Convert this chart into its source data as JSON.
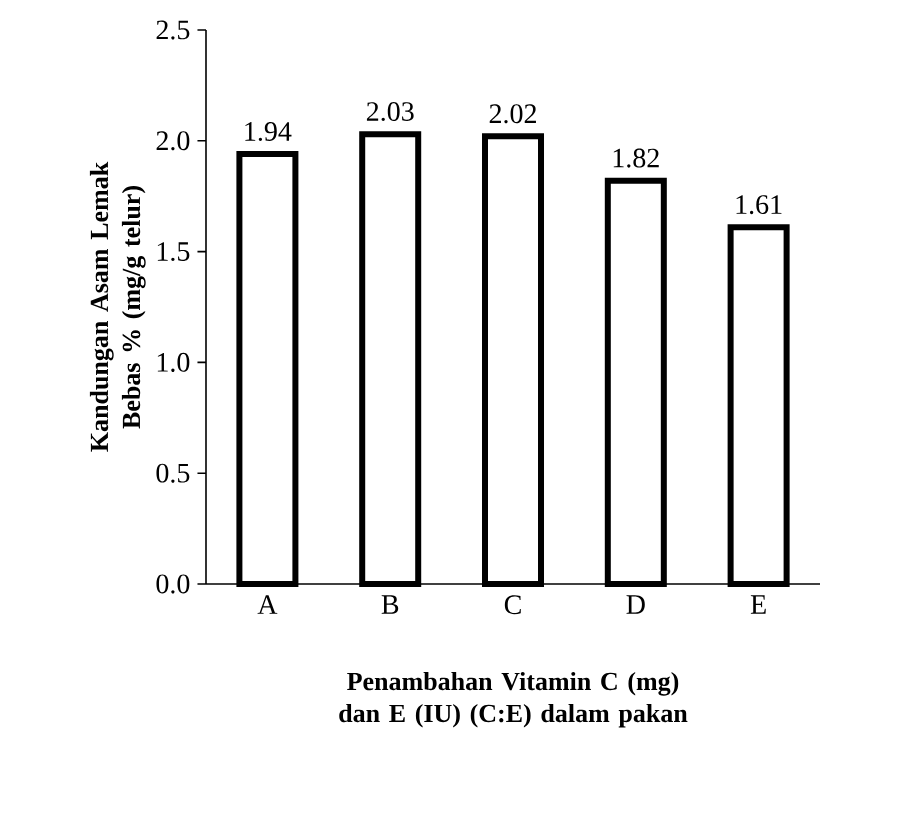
{
  "chart_data": {
    "type": "bar",
    "xlabel": "Penambahan Vitamin C (mg) dan E (IU) (C:E) dalam pakan",
    "ylabel": "Kandungan Asam Lemak Bebas % (mg/g telur)",
    "categories": [
      "A",
      "B",
      "C",
      "D",
      "E"
    ],
    "values": [
      1.94,
      2.03,
      2.02,
      1.82,
      1.61
    ],
    "color": "#ffffff",
    "ylim": [
      0,
      2.5
    ],
    "yticks": [
      {
        "value": 0,
        "label": "0.0"
      },
      0.5,
      {
        "value": 1,
        "label": "1.0"
      },
      1.5,
      {
        "value": 2,
        "label": "2.0"
      },
      2.5
    ],
    "data_labels": true,
    "grid": false
  }
}
